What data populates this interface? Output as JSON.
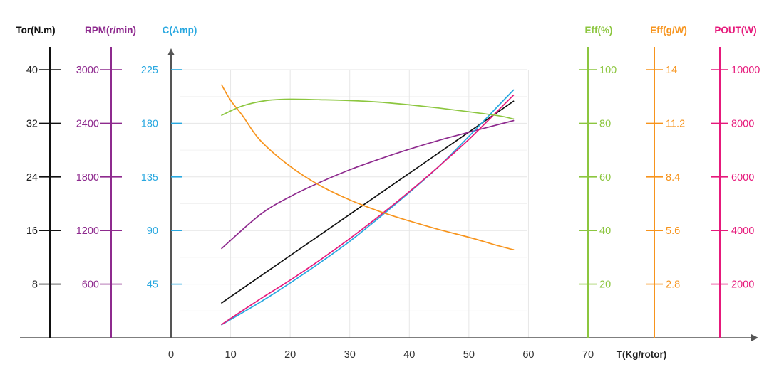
{
  "chart_data": {
    "type": "line",
    "xlabel": "T(Kg/rotor)",
    "xlim": [
      0,
      70
    ],
    "x_ticks": [
      "0",
      "10",
      "20",
      "30",
      "40",
      "50",
      "60",
      "70"
    ],
    "axes": [
      {
        "key": "tor",
        "label": "Tor(N.m)",
        "color": "#111111",
        "range": [
          0,
          40
        ],
        "ticks": [
          "8",
          "16",
          "24",
          "32",
          "40"
        ]
      },
      {
        "key": "rpm",
        "label": "RPM(r/min)",
        "color": "#8e2a8e",
        "range": [
          0,
          3000
        ],
        "ticks": [
          "600",
          "1200",
          "1800",
          "2400",
          "3000"
        ]
      },
      {
        "key": "amp",
        "label": "C(Amp)",
        "color": "#29a8e0",
        "range": [
          0,
          225
        ],
        "ticks": [
          "45",
          "90",
          "135",
          "180",
          "225"
        ]
      },
      {
        "key": "eff",
        "label": "Eff(%)",
        "color": "#8cc63f",
        "range": [
          0,
          100
        ],
        "ticks": [
          "20",
          "40",
          "60",
          "80",
          "100"
        ]
      },
      {
        "key": "effg",
        "label": "Eff(g/W)",
        "color": "#f7941d",
        "range": [
          0,
          14
        ],
        "ticks": [
          "2.8",
          "5.6",
          "8.4",
          "11.2",
          "14"
        ]
      },
      {
        "key": "pout",
        "label": "POUT(W)",
        "color": "#e6197b",
        "range": [
          0,
          10000
        ],
        "ticks": [
          "2000",
          "4000",
          "6000",
          "8000",
          "10000"
        ]
      }
    ],
    "series": [
      {
        "axis": "tor",
        "color": "#111111",
        "x": [
          8.5,
          57.5
        ],
        "values": [
          5.2,
          35.3
        ]
      },
      {
        "axis": "rpm",
        "color": "#8e2a8e",
        "x": [
          8.5,
          15,
          20,
          25,
          30,
          35,
          40,
          45,
          50,
          57.5
        ],
        "values": [
          1000,
          1380,
          1580,
          1740,
          1880,
          2000,
          2110,
          2210,
          2300,
          2430
        ]
      },
      {
        "axis": "amp",
        "color": "#29a8e0",
        "x": [
          8.5,
          15,
          20,
          25,
          30,
          35,
          40,
          45,
          50,
          55,
          57.5
        ],
        "values": [
          11,
          30,
          46,
          63,
          81,
          101,
          122,
          144,
          169,
          195,
          208
        ]
      },
      {
        "axis": "pout",
        "color": "#e6197b",
        "x": [
          8.5,
          15,
          20,
          25,
          30,
          35,
          40,
          45,
          50,
          55,
          57.5
        ],
        "values": [
          500,
          1450,
          2150,
          2900,
          3700,
          4550,
          5450,
          6400,
          7400,
          8500,
          9050
        ]
      },
      {
        "axis": "eff",
        "color": "#8cc63f",
        "x": [
          8.5,
          12,
          16,
          20,
          25,
          30,
          35,
          40,
          45,
          50,
          55,
          57.5
        ],
        "values": [
          83,
          86.5,
          88.5,
          89,
          88.8,
          88.5,
          87.9,
          86.9,
          85.7,
          84.3,
          82.8,
          81.6
        ]
      },
      {
        "axis": "effg",
        "color": "#f7941d",
        "x": [
          8.5,
          10,
          12,
          15,
          20,
          25,
          30,
          35,
          40,
          45,
          50,
          55,
          57.5
        ],
        "values": [
          13.2,
          12.4,
          11.6,
          10.3,
          8.95,
          7.95,
          7.2,
          6.6,
          6.1,
          5.65,
          5.25,
          4.8,
          4.6
        ]
      }
    ]
  }
}
